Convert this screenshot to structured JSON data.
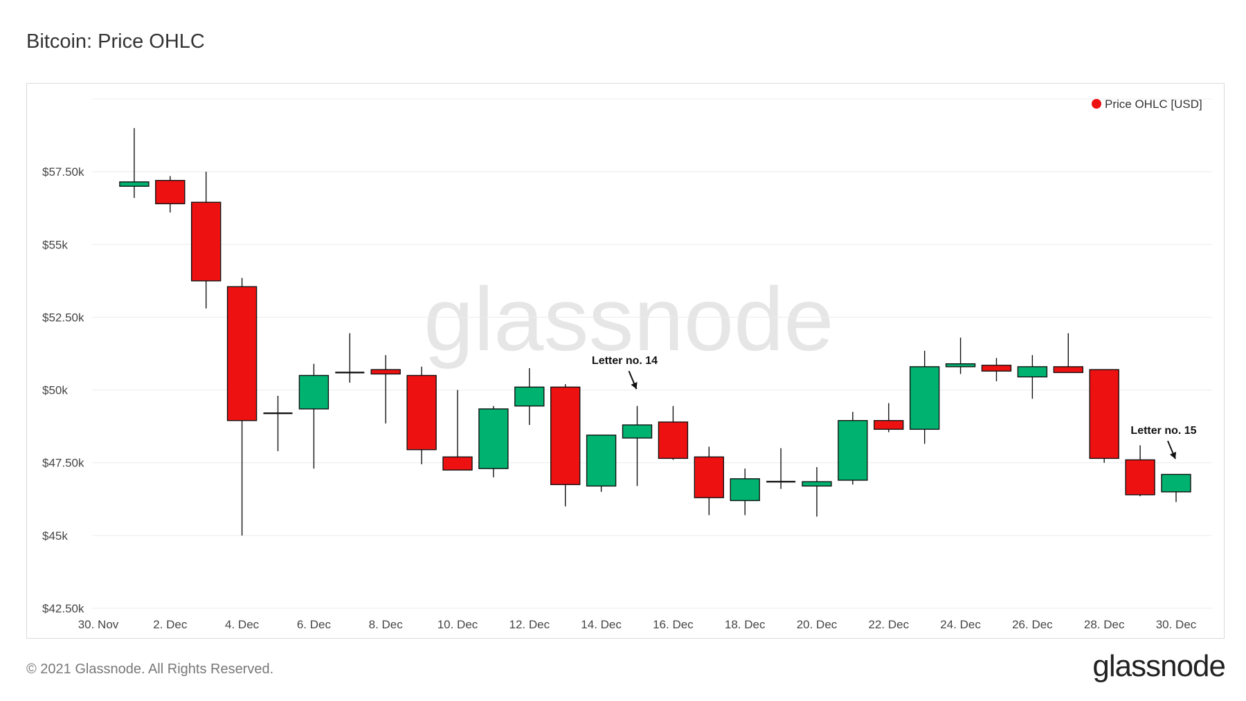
{
  "title": "Bitcoin: Price OHLC",
  "footer": "© 2021 Glassnode. All Rights Reserved.",
  "logo": "glassnode",
  "watermark": "glassnode",
  "chart_data": {
    "type": "candlestick",
    "legend": {
      "label": "Price OHLC [USD]",
      "color": "#ee1111",
      "placement": "top-right"
    },
    "colors": {
      "up": "#00b26f",
      "down": "#ee1111"
    },
    "ylim": [
      42500,
      60000
    ],
    "yticks": [
      {
        "value": 42500,
        "label": "$42.50k"
      },
      {
        "value": 45000,
        "label": "$45k"
      },
      {
        "value": 47500,
        "label": "$47.50k"
      },
      {
        "value": 50000,
        "label": "$50k"
      },
      {
        "value": 52500,
        "label": "$52.50k"
      },
      {
        "value": 55000,
        "label": "$55k"
      },
      {
        "value": 57500,
        "label": "$57.50k"
      }
    ],
    "xticks": [
      {
        "day": 0,
        "label": "30. Nov"
      },
      {
        "day": 2,
        "label": "2. Dec"
      },
      {
        "day": 4,
        "label": "4. Dec"
      },
      {
        "day": 6,
        "label": "6. Dec"
      },
      {
        "day": 8,
        "label": "8. Dec"
      },
      {
        "day": 10,
        "label": "10. Dec"
      },
      {
        "day": 12,
        "label": "12. Dec"
      },
      {
        "day": 14,
        "label": "14. Dec"
      },
      {
        "day": 16,
        "label": "16. Dec"
      },
      {
        "day": 18,
        "label": "18. Dec"
      },
      {
        "day": 20,
        "label": "20. Dec"
      },
      {
        "day": 22,
        "label": "22. Dec"
      },
      {
        "day": 24,
        "label": "24. Dec"
      },
      {
        "day": 26,
        "label": "26. Dec"
      },
      {
        "day": 28,
        "label": "28. Dec"
      },
      {
        "day": 30,
        "label": "30. Dec"
      }
    ],
    "candles": [
      {
        "date": "1. Dec",
        "day": 1,
        "open": 57000,
        "high": 59000,
        "low": 56600,
        "close": 57150
      },
      {
        "date": "2. Dec",
        "day": 2,
        "open": 57200,
        "high": 57350,
        "low": 56100,
        "close": 56400
      },
      {
        "date": "3. Dec",
        "day": 3,
        "open": 56450,
        "high": 57500,
        "low": 52800,
        "close": 53750
      },
      {
        "date": "4. Dec",
        "day": 4,
        "open": 53550,
        "high": 53850,
        "low": 45000,
        "close": 48950
      },
      {
        "date": "5. Dec",
        "day": 5,
        "open": 49200,
        "high": 49800,
        "low": 47900,
        "close": 49200
      },
      {
        "date": "6. Dec",
        "day": 6,
        "open": 49350,
        "high": 50900,
        "low": 47300,
        "close": 50500
      },
      {
        "date": "7. Dec",
        "day": 7,
        "open": 50600,
        "high": 51950,
        "low": 50250,
        "close": 50600
      },
      {
        "date": "8. Dec",
        "day": 8,
        "open": 50700,
        "high": 51200,
        "low": 48850,
        "close": 50550
      },
      {
        "date": "9. Dec",
        "day": 9,
        "open": 50500,
        "high": 50800,
        "low": 47450,
        "close": 47950
      },
      {
        "date": "10. Dec",
        "day": 10,
        "open": 47700,
        "high": 50000,
        "low": 47300,
        "close": 47250
      },
      {
        "date": "11. Dec",
        "day": 11,
        "open": 47300,
        "high": 49450,
        "low": 47000,
        "close": 49350
      },
      {
        "date": "12. Dec",
        "day": 12,
        "open": 49450,
        "high": 50750,
        "low": 48800,
        "close": 50100
      },
      {
        "date": "13. Dec",
        "day": 13,
        "open": 50100,
        "high": 50200,
        "low": 46000,
        "close": 46750
      },
      {
        "date": "14. Dec",
        "day": 14,
        "open": 46700,
        "high": 48450,
        "low": 46500,
        "close": 48450
      },
      {
        "date": "15. Dec",
        "day": 15,
        "open": 48350,
        "high": 49450,
        "low": 46700,
        "close": 48800
      },
      {
        "date": "16. Dec",
        "day": 16,
        "open": 48900,
        "high": 49450,
        "low": 47600,
        "close": 47650
      },
      {
        "date": "17. Dec",
        "day": 17,
        "open": 47700,
        "high": 48050,
        "low": 45700,
        "close": 46300
      },
      {
        "date": "18. Dec",
        "day": 18,
        "open": 46200,
        "high": 47300,
        "low": 45700,
        "close": 46950
      },
      {
        "date": "19. Dec",
        "day": 19,
        "open": 46850,
        "high": 48000,
        "low": 46600,
        "close": 46850
      },
      {
        "date": "20. Dec",
        "day": 20,
        "open": 46700,
        "high": 47350,
        "low": 45650,
        "close": 46850
      },
      {
        "date": "21. Dec",
        "day": 21,
        "open": 46900,
        "high": 49250,
        "low": 46750,
        "close": 48950
      },
      {
        "date": "22. Dec",
        "day": 22,
        "open": 48950,
        "high": 49550,
        "low": 48550,
        "close": 48650
      },
      {
        "date": "23. Dec",
        "day": 23,
        "open": 48650,
        "high": 51350,
        "low": 48150,
        "close": 50800
      },
      {
        "date": "24. Dec",
        "day": 24,
        "open": 50800,
        "high": 51800,
        "low": 50550,
        "close": 50900
      },
      {
        "date": "25. Dec",
        "day": 25,
        "open": 50850,
        "high": 51100,
        "low": 50300,
        "close": 50650
      },
      {
        "date": "26. Dec",
        "day": 26,
        "open": 50450,
        "high": 51200,
        "low": 49700,
        "close": 50800
      },
      {
        "date": "27. Dec",
        "day": 27,
        "open": 50800,
        "high": 51950,
        "low": 50600,
        "close": 50600
      },
      {
        "date": "28. Dec",
        "day": 28,
        "open": 50700,
        "high": 50700,
        "low": 47500,
        "close": 47650
      },
      {
        "date": "29. Dec",
        "day": 29,
        "open": 47600,
        "high": 48100,
        "low": 46350,
        "close": 46400
      },
      {
        "date": "30. Dec",
        "day": 30,
        "open": 46500,
        "high": 47100,
        "low": 46150,
        "close": 47100
      }
    ],
    "annotations": [
      {
        "text": "Letter no. 14",
        "day": 15,
        "value": 49700
      },
      {
        "text": "Letter no. 15",
        "day": 30,
        "value": 47300
      }
    ]
  }
}
